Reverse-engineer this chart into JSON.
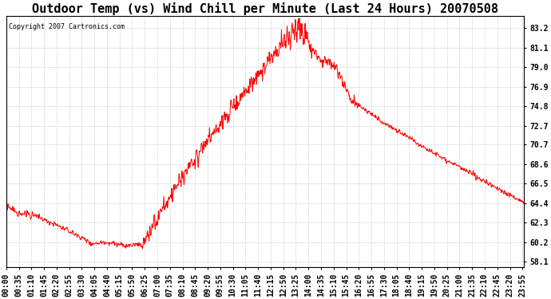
{
  "title": "Outdoor Temp (vs) Wind Chill per Minute (Last 24 Hours) 20070508",
  "copyright": "Copyright 2007 Cartronics.com",
  "ylabel_right_ticks": [
    83.2,
    81.1,
    79.0,
    76.9,
    74.8,
    72.7,
    70.7,
    68.6,
    66.5,
    64.4,
    62.3,
    60.2,
    58.1
  ],
  "ylim": [
    57.5,
    84.5
  ],
  "line_color": "#ff0000",
  "background_color": "#ffffff",
  "grid_color": "#aaaaaa",
  "title_fontsize": 11,
  "tick_fontsize": 7,
  "copyright_fontsize": 6,
  "figsize": [
    6.9,
    3.75
  ],
  "dpi": 100
}
